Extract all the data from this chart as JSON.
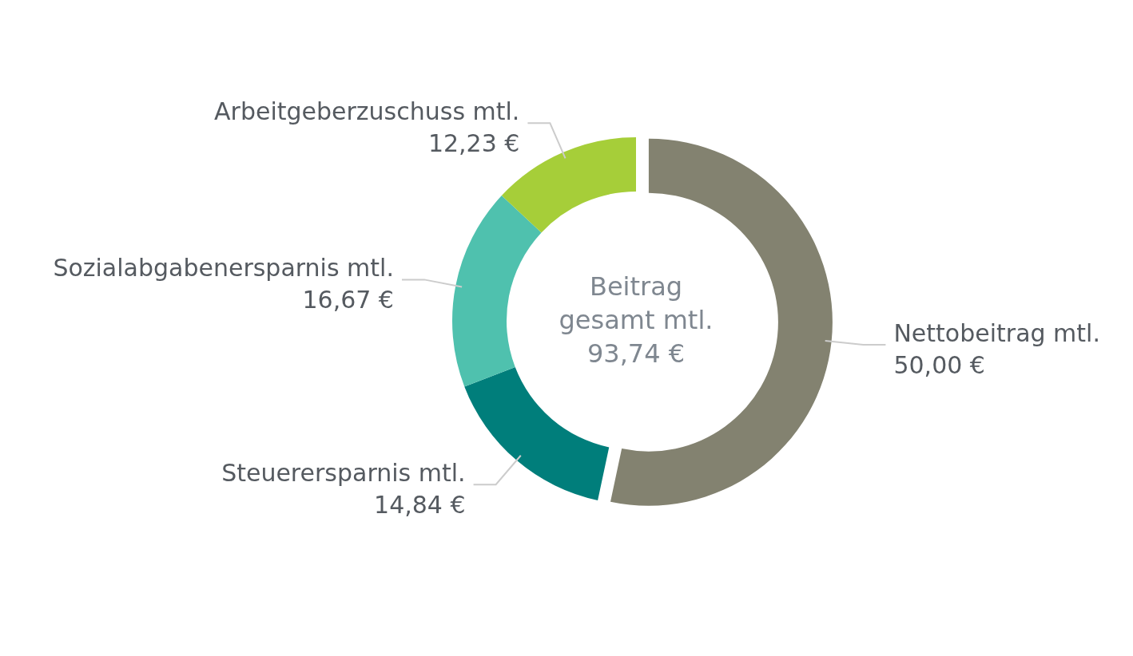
{
  "chart_data": {
    "type": "donut",
    "categories": [
      "Nettobeitrag mtl.",
      "Steuerersparnis mtl.",
      "Sozialabgabenersparnis mtl.",
      "Arbeitgeberzuschuss mtl."
    ],
    "values": [
      50.0,
      14.84,
      16.67,
      12.23
    ],
    "colors": [
      "#838270",
      "#007e7b",
      "#4fc1ae",
      "#a6ce39"
    ],
    "value_labels": [
      "50,00 €",
      "14,84 €",
      "16,67 €",
      "12,23 €"
    ],
    "annotations": [
      "Beitrag gesamt mtl. 93,74 €"
    ]
  }
}
